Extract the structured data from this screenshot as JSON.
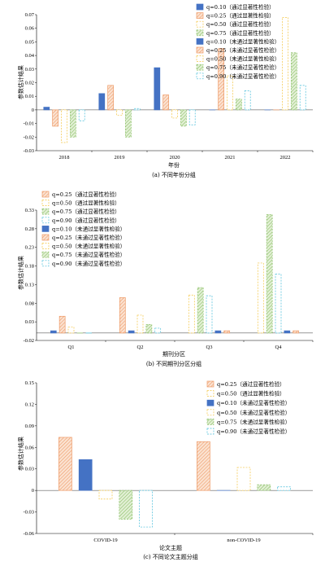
{
  "chart_data": [
    {
      "type": "bar",
      "caption": "(a) 不同年份分组",
      "xlabel": "年份",
      "ylabel": "参数估计结果",
      "ylim": [
        -0.03,
        0.07
      ],
      "yticks": [
        "-0.03",
        "-0.02",
        "-0.01",
        "0",
        "0.01",
        "0.02",
        "0.03",
        "0.04",
        "0.05",
        "0.06",
        "0.07"
      ],
      "categories": [
        "2018",
        "2019",
        "2020",
        "2021",
        "2022"
      ],
      "legend_position": "top-right",
      "series": [
        {
          "name": "q=0.10（通过显著性检验）",
          "style": "solid",
          "values": [
            null,
            null,
            null,
            0.0,
            0.0
          ]
        },
        {
          "name": "q=0.25（通过显著性检验）",
          "style": "hatch-orange",
          "values": [
            null,
            null,
            null,
            0.045,
            0.0
          ]
        },
        {
          "name": "q=0.50（通过显著性检验）",
          "style": "dash-yellow",
          "values": [
            null,
            null,
            null,
            0.025,
            0.068
          ]
        },
        {
          "name": "q=0.75（通过显著性检验）",
          "style": "hatch-green",
          "values": [
            null,
            null,
            null,
            0.008,
            0.042
          ]
        },
        {
          "name": "q=0.10（未通过显著性检验）",
          "style": "solid",
          "values": [
            0.002,
            0.012,
            0.031,
            null,
            null
          ]
        },
        {
          "name": "q=0.25（未通过显著性检验）",
          "style": "hatch-orange",
          "values": [
            -0.012,
            0.018,
            0.011,
            null,
            null
          ]
        },
        {
          "name": "q=0.50（未通过显著性检验）",
          "style": "dash-yellow",
          "values": [
            -0.024,
            -0.004,
            -0.006,
            null,
            null
          ]
        },
        {
          "name": "q=0.75（未通过显著性检验）",
          "style": "hatch-green",
          "values": [
            -0.02,
            -0.02,
            -0.012,
            null,
            null
          ]
        },
        {
          "name": "q=0.90（未通过显著性检验）",
          "style": "dash-cyan",
          "values": [
            -0.008,
            0.001,
            -0.011,
            0.014,
            0.018
          ]
        }
      ]
    },
    {
      "type": "bar",
      "caption": "(b) 不同期刊分区分组",
      "xlabel": "期刊分区",
      "ylabel": "参数估计结果",
      "ylim": [
        -0.02,
        0.33
      ],
      "yticks": [
        "-0.02",
        "0.03",
        "0.08",
        "0.13",
        "0.18",
        "0.23",
        "0.28",
        "0.33"
      ],
      "categories": [
        "Q1",
        "Q2",
        "Q3",
        "Q4"
      ],
      "legend_position": "top-left",
      "series": [
        {
          "name": "q=0.25（通过显著性检验）",
          "style": "hatch-orange",
          "values": [
            null,
            0.095,
            null,
            null
          ]
        },
        {
          "name": "q=0.50（通过显著性检验）",
          "style": "dash-yellow",
          "values": [
            null,
            null,
            0.102,
            0.188
          ]
        },
        {
          "name": "q=0.75（通过显著性检验）",
          "style": "hatch-green",
          "values": [
            null,
            null,
            0.122,
            0.318
          ]
        },
        {
          "name": "q=0.90（通过显著性检验）",
          "style": "dash-cyan",
          "values": [
            null,
            null,
            0.1,
            0.158
          ]
        },
        {
          "name": "q=0.10（未通过显著性检验）",
          "style": "solid",
          "values": [
            0.006,
            0.006,
            0.006,
            0.006
          ]
        },
        {
          "name": "q=0.25（未通过显著性检验）",
          "style": "hatch-orange",
          "values": [
            0.045,
            null,
            0.006,
            0.006
          ]
        },
        {
          "name": "q=0.50（未通过显著性检验）",
          "style": "dash-yellow",
          "values": [
            0.016,
            0.048,
            null,
            null
          ]
        },
        {
          "name": "q=0.75（未通过显著性检验）",
          "style": "hatch-green",
          "values": [
            0.0,
            0.023,
            null,
            null
          ]
        },
        {
          "name": "q=0.90（未通过显著性检验）",
          "style": "dash-cyan",
          "values": [
            0.0,
            0.013,
            null,
            null
          ]
        }
      ]
    },
    {
      "type": "bar",
      "caption": "(c) 不同论文主题分组",
      "xlabel": "论文主题",
      "ylabel": "参数估计结果",
      "ylim": [
        -0.06,
        0.15
      ],
      "yticks": [
        "-0.06",
        "-0.03",
        "0",
        "0.03",
        "0.06",
        "0.09",
        "0.12",
        "0.15"
      ],
      "categories": [
        "COVID-19",
        "non-COVID-19"
      ],
      "legend_position": "top-right",
      "series": [
        {
          "name": "q=0.25（通过显著性检验）",
          "style": "hatch-orange",
          "values": [
            0.074,
            0.068
          ]
        },
        {
          "name": "q=0.50（通过显著性检验）",
          "style": "dash-yellow",
          "values": [
            null,
            null
          ]
        },
        {
          "name": "q=0.10（未通过显著性检验）",
          "style": "solid",
          "values": [
            0.043,
            0.0
          ]
        },
        {
          "name": "q=0.50（未通过显著性检验）",
          "style": "dash-yellow",
          "values": [
            -0.012,
            0.032
          ]
        },
        {
          "name": "q=0.75（未通过显著性检验）",
          "style": "hatch-green",
          "values": [
            -0.04,
            0.008
          ]
        },
        {
          "name": "q=0.90（未通过显著性检验）",
          "style": "dash-cyan",
          "values": [
            -0.051,
            0.005
          ]
        }
      ]
    }
  ]
}
